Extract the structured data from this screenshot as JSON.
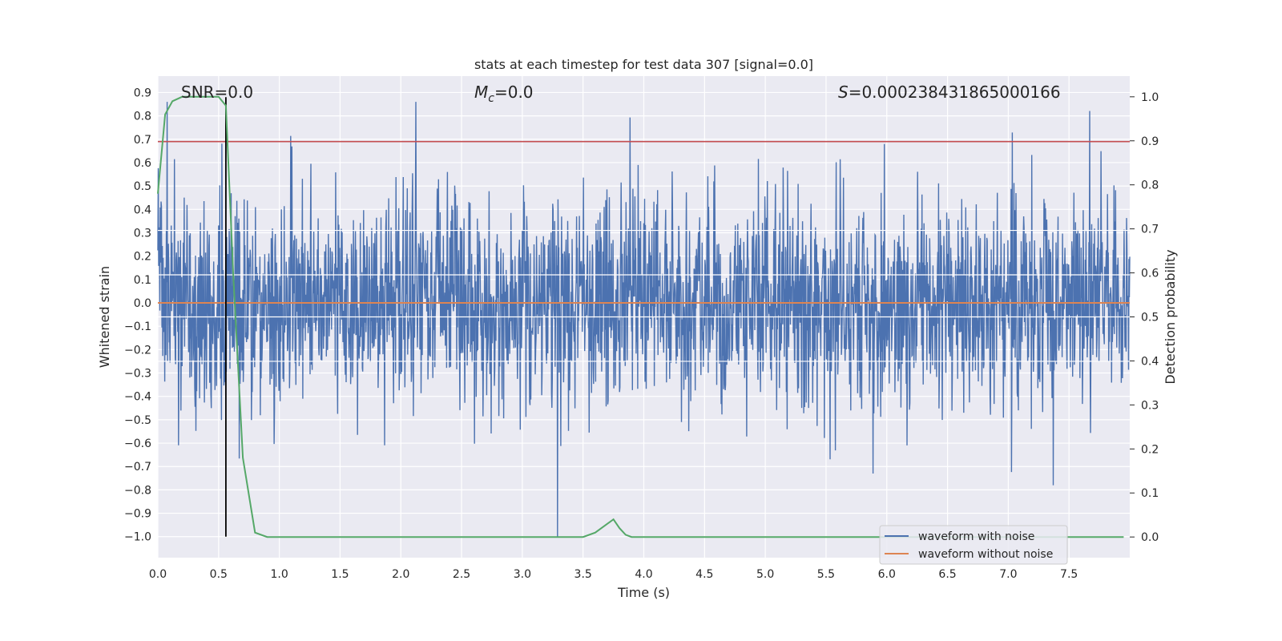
{
  "chart_data": {
    "type": "line",
    "title": "stats at each timestep for test data 307 [signal=0.0]",
    "xlabel": "Time (s)",
    "ylabel": "Whitened strain",
    "y2label": "Detection probability",
    "xlim": [
      0.0,
      8.0
    ],
    "ylim": [
      -1.09,
      0.97
    ],
    "y2lim": [
      -0.047,
      1.047
    ],
    "x_ticks": [
      "0.0",
      "0.5",
      "1.0",
      "1.5",
      "2.0",
      "2.5",
      "3.0",
      "3.5",
      "4.0",
      "4.5",
      "5.0",
      "5.5",
      "6.0",
      "6.5",
      "7.0",
      "7.5"
    ],
    "y_ticks": [
      "0.9",
      "0.8",
      "0.7",
      "0.6",
      "0.5",
      "0.4",
      "0.3",
      "0.2",
      "0.1",
      "0.0",
      "−0.1",
      "−0.2",
      "−0.3",
      "−0.4",
      "−0.5",
      "−0.6",
      "−0.7",
      "−0.8",
      "−0.9",
      "−1.0"
    ],
    "y2_ticks": [
      "1.0",
      "0.9",
      "0.8",
      "0.7",
      "0.6",
      "0.5",
      "0.4",
      "0.3",
      "0.2",
      "0.1",
      "0.0"
    ],
    "grid": true,
    "legend_position": "lower-right",
    "annotations": {
      "snr": "SNR=0.0",
      "mc_symbol": "M",
      "mc_sub": "c",
      "mc_value": "=0.0",
      "s_symbol": "S",
      "s_value": "=0.000238431865000166"
    },
    "reference_lines": {
      "horizontal_y": 0.69,
      "vertical_x": 0.56,
      "vertical_y_range": [
        -1.0,
        0.88
      ]
    },
    "series": [
      {
        "name": "waveform with noise",
        "color": "#4c72b0",
        "description_stats": {
          "typical_range": [
            -0.45,
            0.45
          ],
          "max": 0.88,
          "min": -1.0
        }
      },
      {
        "name": "waveform without noise",
        "color": "#dd8452",
        "values_constant": 0.0
      },
      {
        "color": "#55a868",
        "axis": "right",
        "x": [
          0.0,
          0.06,
          0.12,
          0.2,
          0.3,
          0.4,
          0.5,
          0.56,
          0.62,
          0.7,
          0.8,
          0.9,
          1.0,
          3.5,
          3.6,
          3.7,
          3.75,
          3.8,
          3.85,
          3.9,
          4.0,
          7.95
        ],
        "values": [
          0.78,
          0.96,
          0.99,
          1.0,
          1.0,
          1.0,
          1.0,
          0.98,
          0.6,
          0.18,
          0.01,
          0.0,
          0.0,
          0.0,
          0.01,
          0.03,
          0.04,
          0.02,
          0.005,
          0.0,
          0.0,
          0.0
        ]
      }
    ],
    "colors": {
      "plot_background": "#eaeaf2",
      "grid": "#ffffff",
      "threshold_line": "#c44e52",
      "marker_line": "#000000"
    }
  }
}
